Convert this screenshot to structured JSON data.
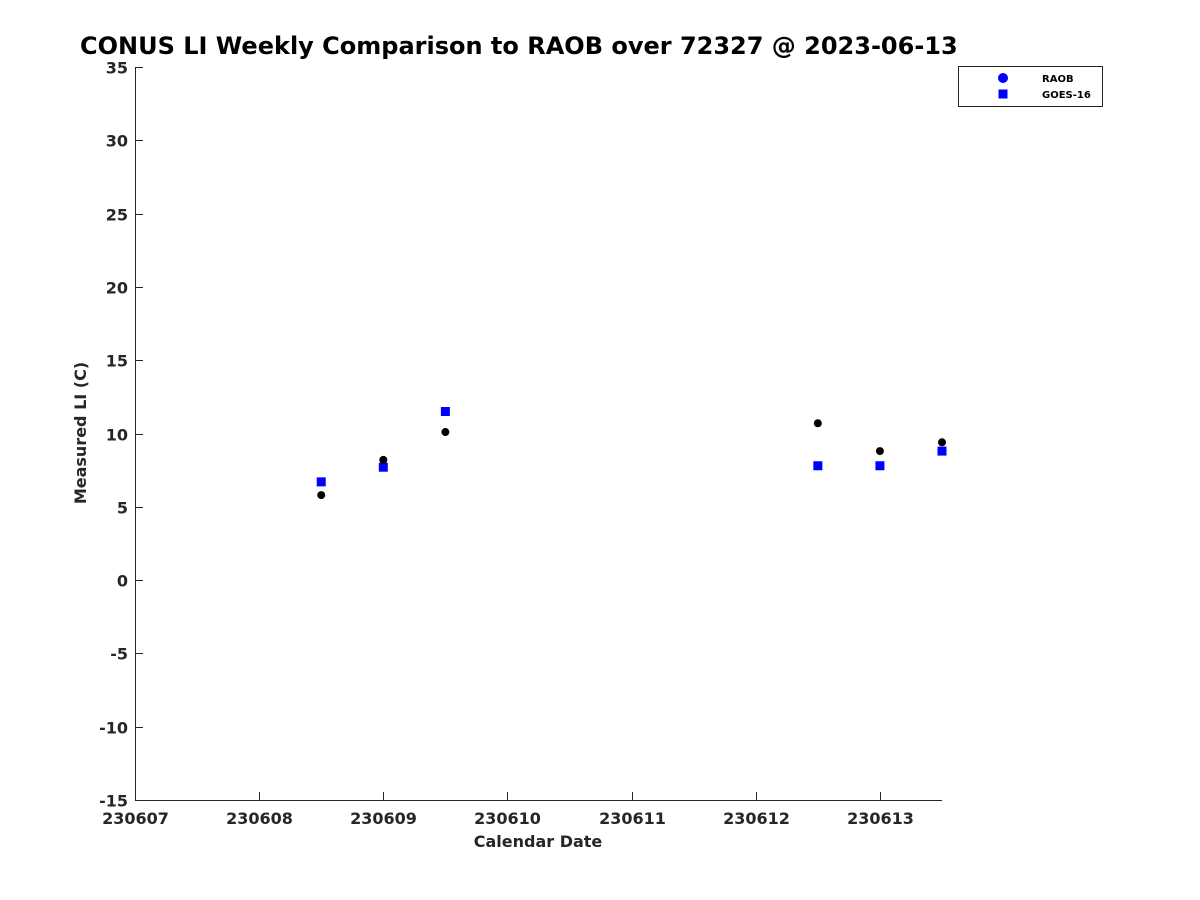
{
  "chart_data": {
    "type": "scatter",
    "title": "CONUS LI Weekly Comparison to RAOB over 72327 @ 2023-06-13",
    "xlabel": "Calendar Date",
    "ylabel": "Measured LI (C)",
    "xlim": [
      0,
      6.5
    ],
    "ylim": [
      -15,
      35
    ],
    "x_ticks": [
      {
        "value": 0,
        "label": "230607"
      },
      {
        "value": 1,
        "label": "230608"
      },
      {
        "value": 2,
        "label": "230609"
      },
      {
        "value": 3,
        "label": "230610"
      },
      {
        "value": 4,
        "label": "230611"
      },
      {
        "value": 5,
        "label": "230612"
      },
      {
        "value": 6,
        "label": "230613"
      }
    ],
    "y_ticks": [
      {
        "value": 35,
        "label": "35"
      },
      {
        "value": 30,
        "label": "30"
      },
      {
        "value": 25,
        "label": "25"
      },
      {
        "value": 20,
        "label": "20"
      },
      {
        "value": 15,
        "label": "15"
      },
      {
        "value": 10,
        "label": "10"
      },
      {
        "value": 5,
        "label": "5"
      },
      {
        "value": 0,
        "label": "0"
      },
      {
        "value": -5,
        "label": "-5"
      },
      {
        "value": -10,
        "label": "-10"
      },
      {
        "value": -15,
        "label": "-15"
      }
    ],
    "grid": false,
    "legend_position": "top-right",
    "series": [
      {
        "name": "RAOB",
        "marker": "circle",
        "color": "#000000",
        "legend_color": "#0000ff",
        "points": [
          {
            "x": 1.5,
            "y": 5.8
          },
          {
            "x": 2.0,
            "y": 8.2
          },
          {
            "x": 2.5,
            "y": 10.1
          },
          {
            "x": 5.5,
            "y": 10.7
          },
          {
            "x": 6.0,
            "y": 8.8
          },
          {
            "x": 6.5,
            "y": 9.4
          }
        ]
      },
      {
        "name": "GOES-16",
        "marker": "square",
        "color": "#0000ff",
        "legend_color": "#0000ff",
        "points": [
          {
            "x": 1.5,
            "y": 6.7
          },
          {
            "x": 2.0,
            "y": 7.7
          },
          {
            "x": 2.5,
            "y": 11.5
          },
          {
            "x": 5.5,
            "y": 7.8
          },
          {
            "x": 6.0,
            "y": 7.8
          },
          {
            "x": 6.5,
            "y": 8.8
          }
        ]
      }
    ]
  }
}
